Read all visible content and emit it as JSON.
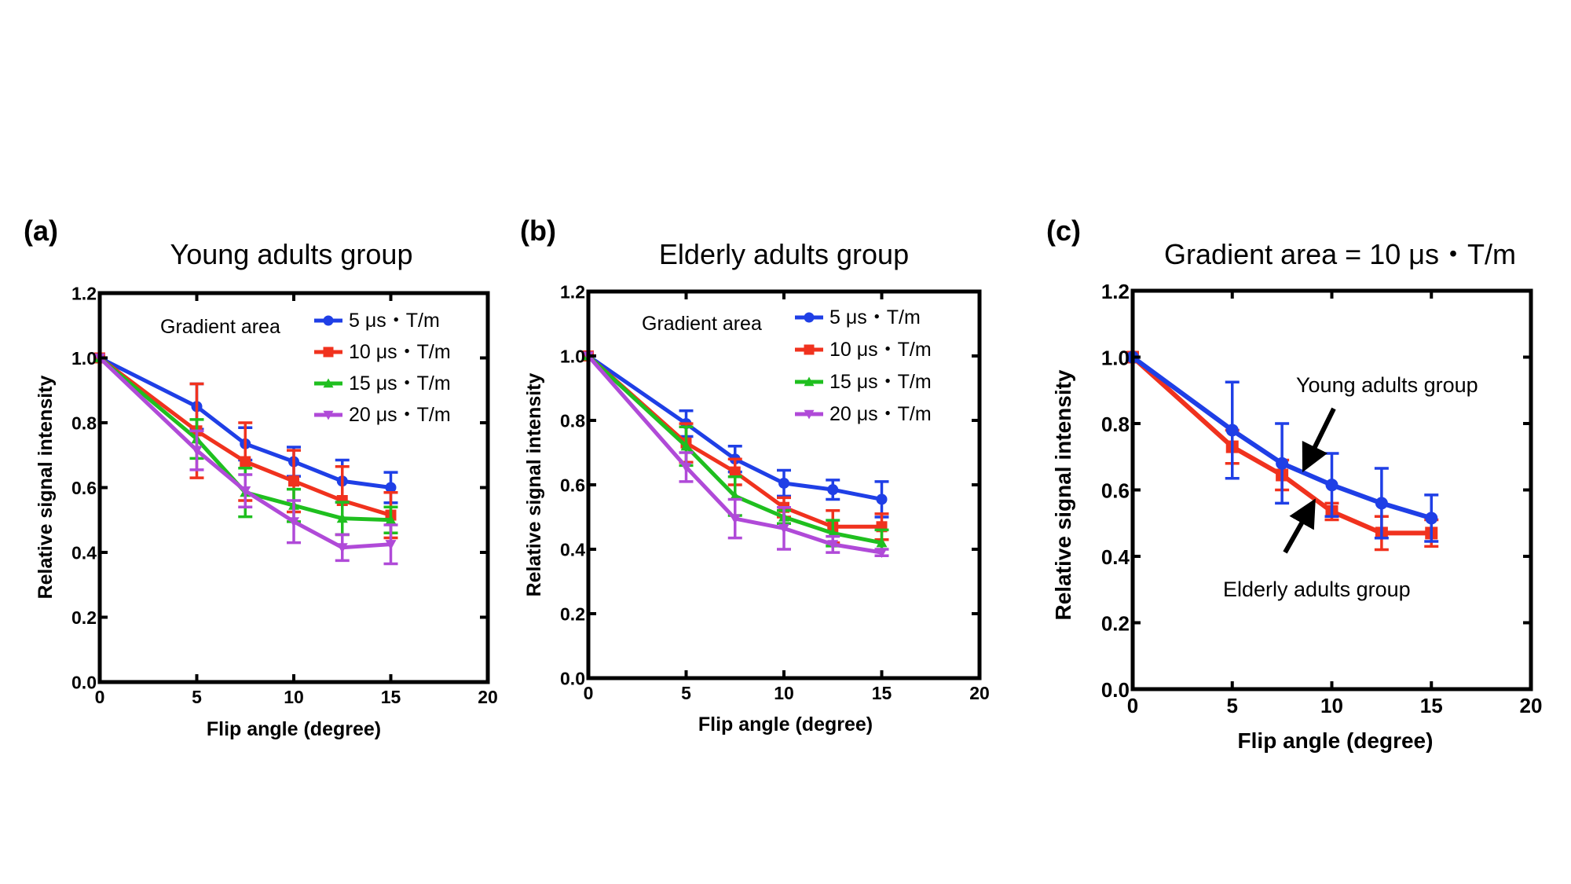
{
  "chart_data": [
    {
      "type": "line",
      "panel_label": "(a)",
      "title": "Young adults group",
      "xlabel": "Flip angle (degree)",
      "ylabel": "Relative signal intensity",
      "xlim": [
        0,
        20
      ],
      "ylim": [
        0,
        1.2
      ],
      "xticks": [
        "0",
        "5",
        "10",
        "15",
        "20"
      ],
      "yticks": [
        "0.0",
        "0.2",
        "0.4",
        "0.6",
        "0.8",
        "1.0",
        "1.2"
      ],
      "grid": false,
      "legend_title": "Gradient area",
      "legend_position": "top-right",
      "x": [
        0,
        5,
        7.5,
        10,
        12.5,
        15
      ],
      "series": [
        {
          "name": "5 μs・T/m",
          "color": "#1f3fe6",
          "marker": "circle",
          "values": [
            1.0,
            0.85,
            0.735,
            0.68,
            0.62,
            0.6
          ],
          "errors": [
            0.0,
            0.07,
            0.05,
            0.045,
            0.065,
            0.047
          ]
        },
        {
          "name": "10 μs・T/m",
          "color": "#f0321e",
          "marker": "square",
          "values": [
            1.0,
            0.775,
            0.68,
            0.62,
            0.56,
            0.515
          ],
          "errors": [
            0.0,
            0.145,
            0.12,
            0.095,
            0.105,
            0.07
          ]
        },
        {
          "name": "15 μs・T/m",
          "color": "#1fbf1f",
          "marker": "triangle-up",
          "values": [
            1.0,
            0.75,
            0.585,
            0.545,
            0.505,
            0.5
          ],
          "errors": [
            0.0,
            0.06,
            0.075,
            0.05,
            0.05,
            0.04
          ]
        },
        {
          "name": "20 μs・T/m",
          "color": "#b04ad8",
          "marker": "triangle-down",
          "values": [
            1.0,
            0.715,
            0.59,
            0.495,
            0.415,
            0.425
          ],
          "errors": [
            0.0,
            0.06,
            0.05,
            0.065,
            0.04,
            0.06
          ]
        }
      ]
    },
    {
      "type": "line",
      "panel_label": "(b)",
      "title": "Elderly adults group",
      "xlabel": "Flip angle (degree)",
      "ylabel": "Relative signal intensity",
      "xlim": [
        0,
        20
      ],
      "ylim": [
        0,
        1.2
      ],
      "xticks": [
        "0",
        "5",
        "10",
        "15",
        "20"
      ],
      "yticks": [
        "0.0",
        "0.2",
        "0.4",
        "0.6",
        "0.8",
        "1.0",
        "1.2"
      ],
      "grid": false,
      "legend_title": "Gradient area",
      "legend_position": "top-right",
      "x": [
        0,
        5,
        7.5,
        10,
        12.5,
        15
      ],
      "series": [
        {
          "name": "5 μs・T/m",
          "color": "#1f3fe6",
          "marker": "circle",
          "values": [
            1.0,
            0.79,
            0.68,
            0.605,
            0.585,
            0.555
          ],
          "errors": [
            0.0,
            0.04,
            0.04,
            0.04,
            0.03,
            0.055
          ]
        },
        {
          "name": "10 μs・T/m",
          "color": "#f0321e",
          "marker": "square",
          "values": [
            1.0,
            0.73,
            0.64,
            0.53,
            0.47,
            0.47
          ],
          "errors": [
            0.0,
            0.06,
            0.04,
            0.03,
            0.05,
            0.04
          ]
        },
        {
          "name": "15 μs・T/m",
          "color": "#1fbf1f",
          "marker": "triangle-up",
          "values": [
            1.0,
            0.72,
            0.565,
            0.5,
            0.45,
            0.42
          ],
          "errors": [
            0.0,
            0.06,
            0.06,
            0.02,
            0.04,
            0.04
          ]
        },
        {
          "name": "20 μs・T/m",
          "color": "#b04ad8",
          "marker": "triangle-down",
          "values": [
            1.0,
            0.655,
            0.495,
            0.465,
            0.415,
            0.39
          ],
          "errors": [
            0.0,
            0.045,
            0.06,
            0.065,
            0.025,
            0.01
          ]
        }
      ]
    },
    {
      "type": "line",
      "panel_label": "(c)",
      "title": "Gradient area = 10 μs・T/m",
      "xlabel": "Flip angle (degree)",
      "ylabel": "Relative signal intensity",
      "xlim": [
        0,
        20
      ],
      "ylim": [
        0,
        1.2
      ],
      "xticks": [
        "0",
        "5",
        "10",
        "15",
        "20"
      ],
      "yticks": [
        "0.0",
        "0.2",
        "0.4",
        "0.6",
        "0.8",
        "1.0",
        "1.2"
      ],
      "grid": false,
      "x": [
        0,
        5,
        7.5,
        10,
        12.5,
        15
      ],
      "series": [
        {
          "name": "Elderly adults group",
          "color": "#f0321e",
          "marker": "square",
          "values": [
            1.0,
            0.73,
            0.645,
            0.535,
            0.47,
            0.47
          ],
          "errors": [
            0.0,
            0.05,
            0.045,
            0.025,
            0.05,
            0.04
          ]
        },
        {
          "name": "Young adults group",
          "color": "#1f3fe6",
          "marker": "circle",
          "values": [
            1.0,
            0.78,
            0.68,
            0.615,
            0.56,
            0.515
          ],
          "errors": [
            0.0,
            0.145,
            0.12,
            0.095,
            0.105,
            0.07
          ]
        }
      ],
      "annotations": [
        {
          "text": "Young adults group",
          "points_to": {
            "x": 8.5,
            "y": 0.665
          }
        },
        {
          "text": "Elderly adults group",
          "points_to": {
            "x": 8.8,
            "y": 0.57
          }
        }
      ]
    }
  ]
}
